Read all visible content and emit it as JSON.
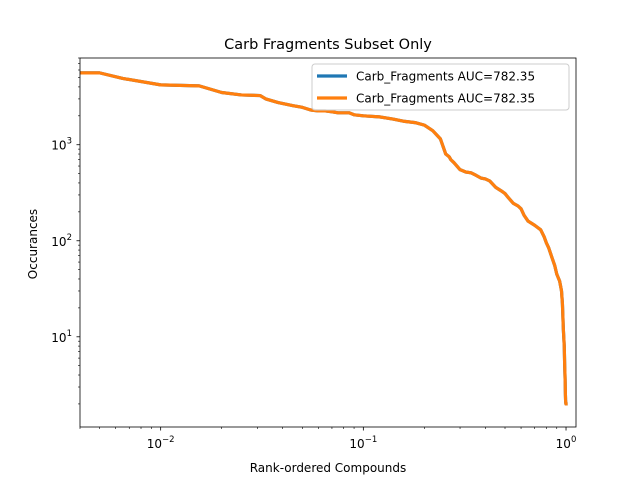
{
  "chart_data": {
    "type": "line",
    "title": "Carb Fragments Subset Only",
    "xlabel": "Rank-ordered Compounds",
    "ylabel": "Occurances",
    "xscale": "log",
    "yscale": "log",
    "xlim": [
      0.004,
      1.12
    ],
    "ylim": [
      1.15,
      8000
    ],
    "grid": false,
    "legend_position": "upper-right",
    "x_ticks": [
      {
        "value": 0.01,
        "base": "10",
        "exp": "−2"
      },
      {
        "value": 0.1,
        "base": "10",
        "exp": "−1"
      },
      {
        "value": 1,
        "base": "10",
        "exp": "0"
      }
    ],
    "y_ticks": [
      {
        "value": 10,
        "base": "10",
        "exp": "1"
      },
      {
        "value": 100,
        "base": "10",
        "exp": "2"
      },
      {
        "value": 1000,
        "base": "10",
        "exp": "3"
      }
    ],
    "series": [
      {
        "name": "Carb_Fragments AUC=782.35",
        "color": "#1f77b4",
        "x": [
          0.004,
          0.005,
          0.0065,
          0.01,
          0.0155,
          0.02,
          0.025,
          0.031,
          0.033,
          0.038,
          0.045,
          0.05,
          0.055,
          0.06,
          0.065,
          0.07,
          0.075,
          0.085,
          0.09,
          0.1,
          0.12,
          0.14,
          0.16,
          0.18,
          0.2,
          0.22,
          0.24,
          0.255,
          0.265,
          0.27,
          0.28,
          0.3,
          0.32,
          0.34,
          0.36,
          0.38,
          0.4,
          0.42,
          0.45,
          0.48,
          0.5,
          0.52,
          0.55,
          0.58,
          0.6,
          0.62,
          0.65,
          0.7,
          0.75,
          0.78,
          0.8,
          0.82,
          0.85,
          0.88,
          0.9,
          0.93,
          0.95,
          0.96,
          0.97,
          0.98,
          0.985,
          0.99,
          0.993,
          0.995,
          0.997,
          0.999,
          1.0
        ],
        "y": [
          5600,
          5600,
          4900,
          4200,
          4100,
          3500,
          3300,
          3250,
          3000,
          2750,
          2550,
          2450,
          2300,
          2250,
          2250,
          2200,
          2150,
          2150,
          2050,
          2000,
          1950,
          1850,
          1750,
          1700,
          1600,
          1400,
          1150,
          800,
          750,
          700,
          650,
          550,
          520,
          510,
          480,
          450,
          440,
          420,
          360,
          330,
          310,
          280,
          245,
          230,
          215,
          185,
          160,
          145,
          130,
          110,
          95,
          85,
          68,
          55,
          45,
          38,
          30,
          22,
          12,
          8,
          5,
          3.5,
          2.5,
          2.2,
          2.05,
          2.0,
          2.0
        ]
      },
      {
        "name": "Carb_Fragments AUC=782.35",
        "color": "#ff7f0e",
        "x": [
          0.004,
          0.005,
          0.0065,
          0.01,
          0.0155,
          0.02,
          0.025,
          0.031,
          0.033,
          0.038,
          0.045,
          0.05,
          0.055,
          0.06,
          0.065,
          0.07,
          0.075,
          0.085,
          0.09,
          0.1,
          0.12,
          0.14,
          0.16,
          0.18,
          0.2,
          0.22,
          0.24,
          0.255,
          0.265,
          0.27,
          0.28,
          0.3,
          0.32,
          0.34,
          0.36,
          0.38,
          0.4,
          0.42,
          0.45,
          0.48,
          0.5,
          0.52,
          0.55,
          0.58,
          0.6,
          0.62,
          0.65,
          0.7,
          0.75,
          0.78,
          0.8,
          0.82,
          0.85,
          0.88,
          0.9,
          0.93,
          0.95,
          0.96,
          0.97,
          0.98,
          0.985,
          0.99,
          0.993,
          0.995,
          0.997,
          0.999,
          1.0
        ],
        "y": [
          5600,
          5600,
          4900,
          4200,
          4100,
          3500,
          3300,
          3250,
          3000,
          2750,
          2550,
          2450,
          2300,
          2250,
          2250,
          2200,
          2150,
          2150,
          2050,
          2000,
          1950,
          1850,
          1750,
          1700,
          1600,
          1400,
          1150,
          800,
          750,
          700,
          650,
          550,
          520,
          510,
          480,
          450,
          440,
          420,
          360,
          330,
          310,
          280,
          245,
          230,
          215,
          185,
          160,
          145,
          130,
          110,
          95,
          85,
          68,
          55,
          45,
          38,
          30,
          22,
          12,
          8,
          5,
          3.5,
          2.5,
          2.2,
          2.05,
          2.0,
          2.0
        ]
      }
    ]
  }
}
